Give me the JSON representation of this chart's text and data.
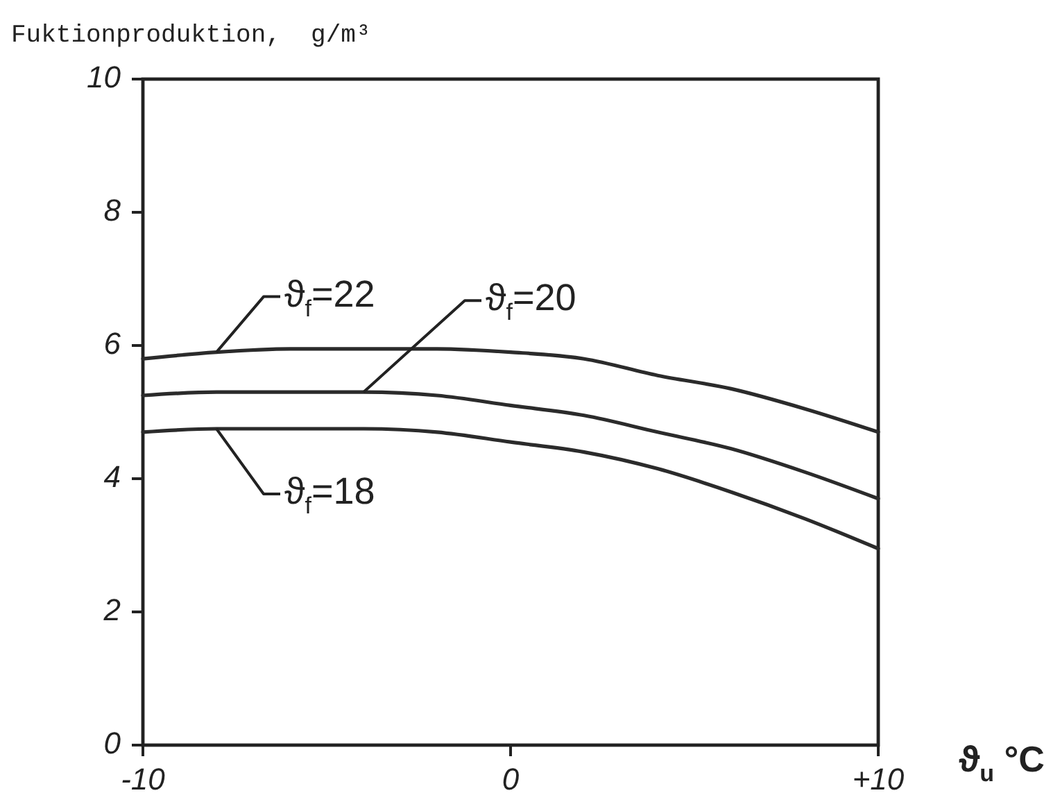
{
  "chart_data": {
    "type": "line",
    "ylabel": "Fuktionproduktion,  g/m³",
    "xlabel": "ϑ$_{u}$ °C",
    "x": [
      -10,
      -8,
      -6,
      -4,
      -2,
      0,
      2,
      4,
      6,
      8,
      10
    ],
    "series": [
      {
        "name": "ϑ$_{f}$=22",
        "color": "#2b2b2b",
        "values": [
          5.8,
          5.9,
          5.95,
          5.95,
          5.95,
          5.9,
          5.8,
          5.55,
          5.35,
          5.05,
          4.7
        ]
      },
      {
        "name": "ϑ$_{f}$=20",
        "color": "#2b2b2b",
        "values": [
          5.25,
          5.3,
          5.3,
          5.3,
          5.25,
          5.1,
          4.95,
          4.7,
          4.45,
          4.1,
          3.7
        ]
      },
      {
        "name": "ϑ$_{f}$=18",
        "color": "#2b2b2b",
        "values": [
          4.7,
          4.75,
          4.75,
          4.75,
          4.7,
          4.55,
          4.4,
          4.15,
          3.8,
          3.4,
          2.95
        ]
      }
    ],
    "xlim": [
      -10,
      10
    ],
    "ylim": [
      0,
      10
    ],
    "xticks": [
      -10,
      0,
      {
        "value": 10,
        "label": "+10"
      }
    ],
    "yticks": [
      0,
      2,
      4,
      6,
      8,
      10
    ]
  }
}
